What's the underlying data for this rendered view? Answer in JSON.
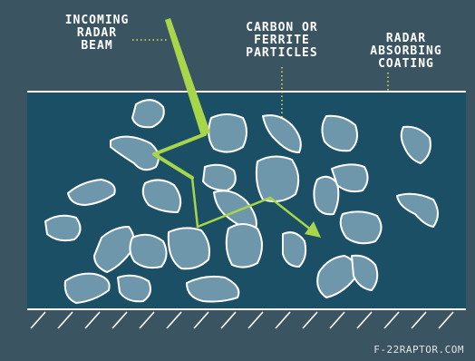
{
  "labels": {
    "incoming": "INCOMING\nRADAR\nBEAM",
    "particles": "CARBON OR\nFERRITE\nPARTICLES",
    "coating": "RADAR\nABSORBING\nCOATING"
  },
  "credit": "F-22RAPTOR.COM",
  "colors": {
    "background": "#3a5561",
    "coating": "#1b4f66",
    "particle_fill": "#6f97ab",
    "outline": "#ffffff",
    "beam": "#a8d64a",
    "leader": "#d9e64a"
  }
}
